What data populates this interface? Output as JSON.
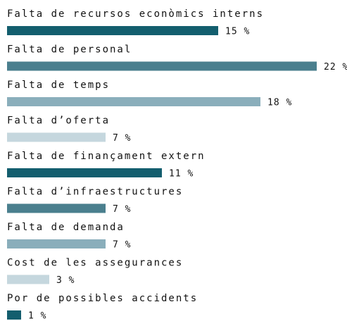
{
  "chart_data": {
    "type": "bar",
    "categories": [
      "Falta de recursos econòmics interns",
      "Falta de personal",
      "Falta de temps",
      "Falta d’oferta",
      "Falta de finançament extern",
      "Falta d’infraestructures",
      "Falta de demanda",
      "Cost de les assegurances",
      "Por de possibles accidents"
    ],
    "values": [
      15,
      22,
      18,
      7,
      11,
      7,
      7,
      3,
      1
    ],
    "value_labels": [
      "15 %",
      "22 %",
      "18 %",
      "7 %",
      "11 %",
      "7 %",
      "7 %",
      "3 %",
      "1 %"
    ],
    "colors": [
      "#135e6e",
      "#4a7f8e",
      "#8aaebb",
      "#c5d7de",
      "#135e6e",
      "#4a7f8e",
      "#8aaebb",
      "#c5d7de",
      "#135e6e"
    ]
  }
}
